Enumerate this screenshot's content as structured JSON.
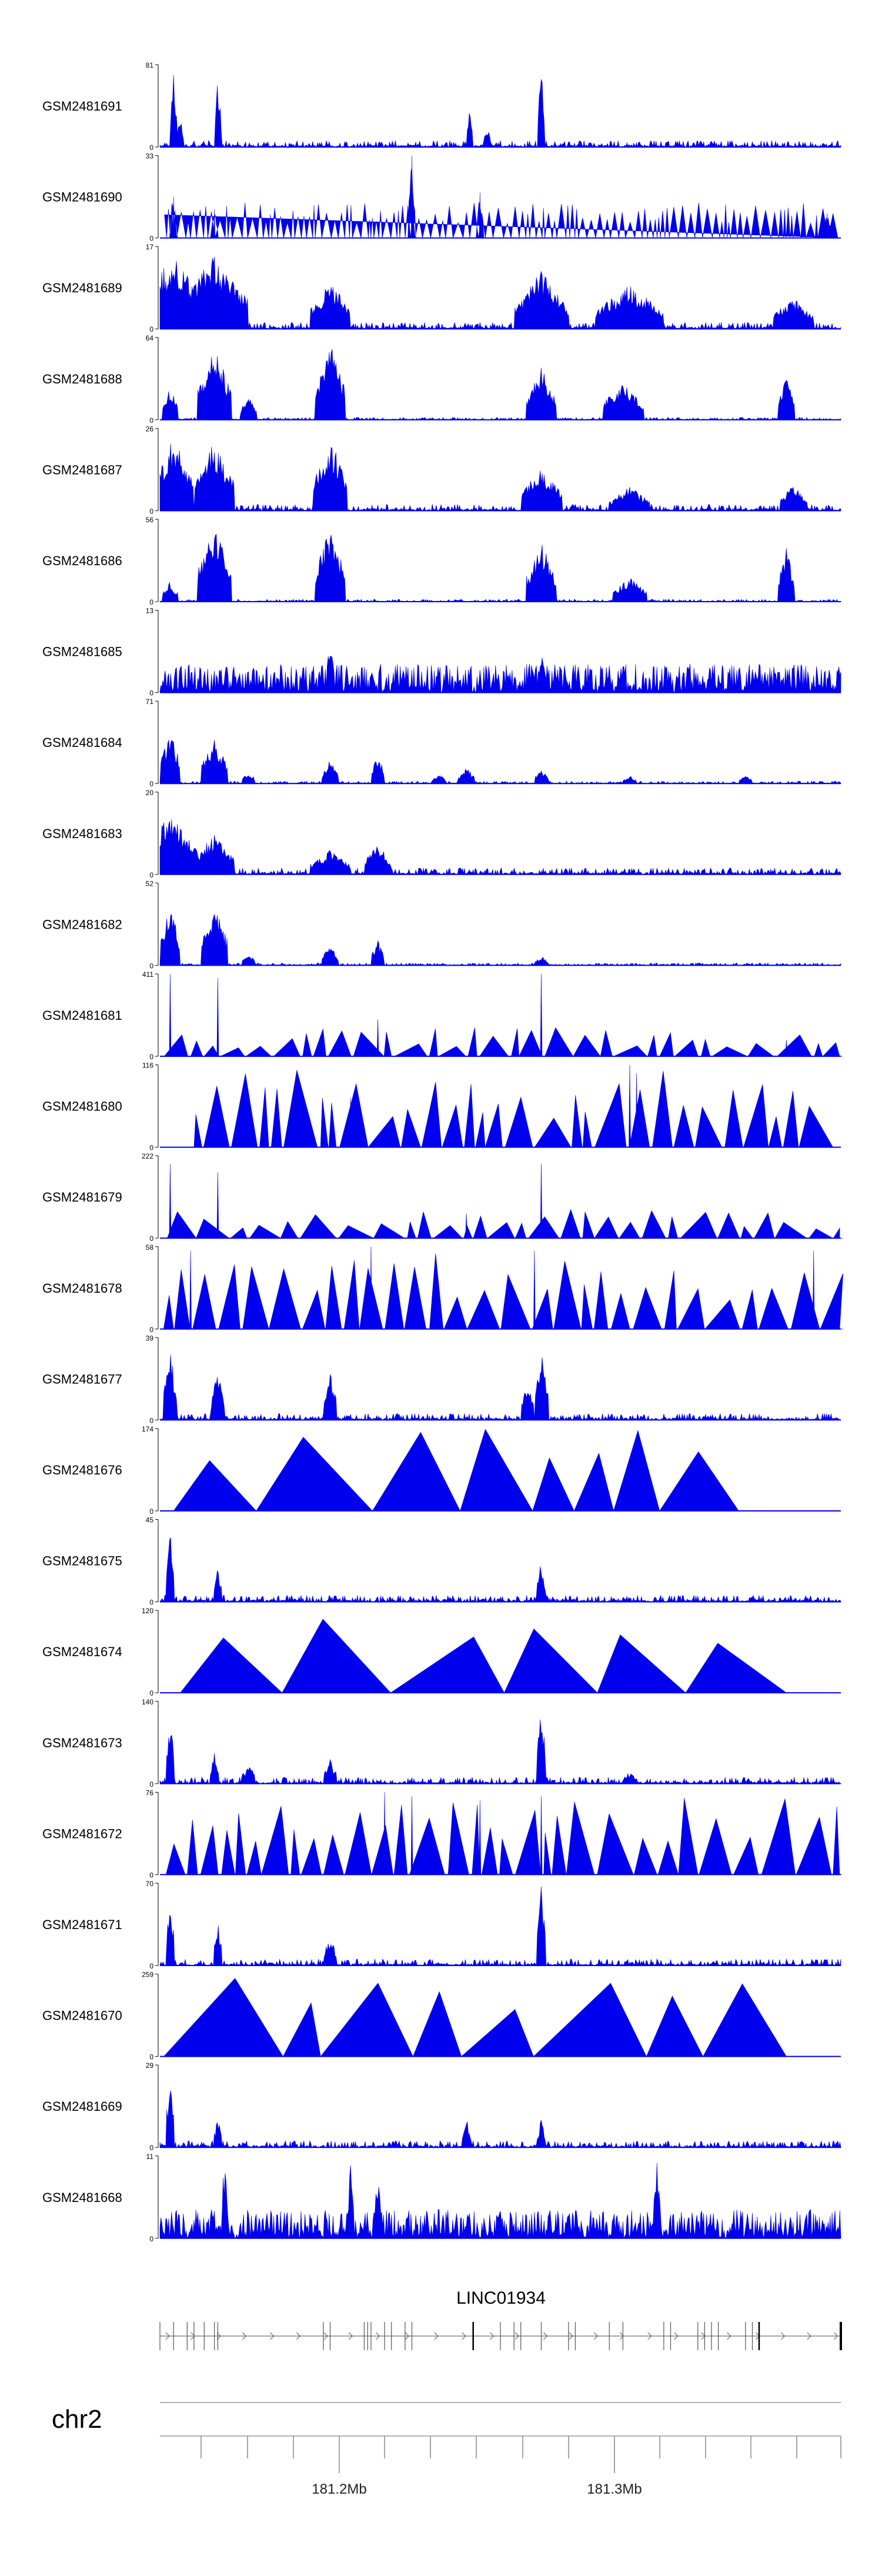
{
  "chart_data": {
    "type": "area",
    "chromosome": "chr2",
    "gene": "LINC01934",
    "x_ticks": [
      "181.2Mb",
      "181.3Mb"
    ],
    "color": "#0000ee",
    "tracks": [
      {
        "name": "GSM2481691",
        "ymax": "81",
        "ymin": "0",
        "style": "noisy",
        "peaks": [
          [
            0.02,
            0.9,
            0.5
          ],
          [
            0.03,
            0.38,
            0.5
          ],
          [
            0.085,
            0.85,
            0.5
          ],
          [
            0.455,
            0.45,
            0.5
          ],
          [
            0.48,
            0.28,
            0.5
          ],
          [
            0.56,
            1.0,
            0.5
          ]
        ]
      },
      {
        "name": "GSM2481690",
        "ymax": "33",
        "ymin": "0",
        "style": "sparse",
        "peaks": [
          [
            0.02,
            0.5,
            0.5
          ],
          [
            0.08,
            0.35,
            0.5
          ],
          [
            0.37,
            1.0,
            0.5
          ],
          [
            0.47,
            0.55,
            0.5
          ],
          [
            0.98,
            0.3,
            0.5
          ]
        ]
      },
      {
        "name": "GSM2481689",
        "ymax": "17",
        "ymin": "0",
        "style": "noisy",
        "peaks": [
          [
            0.02,
            0.95,
            4
          ],
          [
            0.08,
            0.9,
            5
          ],
          [
            0.25,
            0.6,
            3
          ],
          [
            0.56,
            0.7,
            4
          ],
          [
            0.69,
            0.55,
            5
          ],
          [
            0.93,
            0.4,
            3
          ]
        ]
      },
      {
        "name": "GSM2481688",
        "ymax": "64",
        "ymin": "0",
        "style": "broad",
        "peaks": [
          [
            0.015,
            0.4,
            1.2
          ],
          [
            0.08,
            0.9,
            2.5
          ],
          [
            0.13,
            0.3,
            1.2
          ],
          [
            0.25,
            0.95,
            2.2
          ],
          [
            0.56,
            0.65,
            2.2
          ],
          [
            0.68,
            0.5,
            3
          ],
          [
            0.92,
            0.55,
            1.2
          ]
        ]
      },
      {
        "name": "GSM2481687",
        "ymax": "26",
        "ymin": "0",
        "style": "noisy",
        "peaks": [
          [
            0.02,
            0.9,
            3
          ],
          [
            0.08,
            0.85,
            3
          ],
          [
            0.25,
            0.9,
            2.5
          ],
          [
            0.56,
            0.55,
            3
          ],
          [
            0.69,
            0.3,
            3
          ],
          [
            0.93,
            0.35,
            2
          ]
        ]
      },
      {
        "name": "GSM2481686",
        "ymax": "56",
        "ymin": "0",
        "style": "broad",
        "peaks": [
          [
            0.015,
            0.25,
            1.2
          ],
          [
            0.08,
            0.95,
            2.5
          ],
          [
            0.25,
            0.95,
            2.2
          ],
          [
            0.56,
            0.75,
            2.2
          ],
          [
            0.69,
            0.3,
            2.5
          ],
          [
            0.92,
            0.65,
            1.2
          ]
        ]
      },
      {
        "name": "GSM2481685",
        "ymax": "13",
        "ymin": "0",
        "style": "dense",
        "peaks": [
          [
            0.25,
            0.7,
            0.5
          ],
          [
            0.56,
            0.55,
            0.5
          ]
        ]
      },
      {
        "name": "GSM2481684",
        "ymax": "71",
        "ymin": "0",
        "style": "broad",
        "peaks": [
          [
            0.015,
            0.65,
            1.5
          ],
          [
            0.08,
            0.55,
            2
          ],
          [
            0.13,
            0.15,
            1
          ],
          [
            0.25,
            0.3,
            1.2
          ],
          [
            0.32,
            0.35,
            1
          ],
          [
            0.41,
            0.12,
            1
          ],
          [
            0.45,
            0.2,
            1.2
          ],
          [
            0.56,
            0.18,
            1
          ],
          [
            0.69,
            0.1,
            1
          ],
          [
            0.86,
            0.1,
            1
          ]
        ]
      },
      {
        "name": "GSM2481683",
        "ymax": "20",
        "ymin": "0",
        "style": "noisy",
        "peaks": [
          [
            0.015,
            0.75,
            4
          ],
          [
            0.08,
            0.5,
            3
          ],
          [
            0.25,
            0.3,
            3
          ],
          [
            0.32,
            0.4,
            2
          ]
        ]
      },
      {
        "name": "GSM2481682",
        "ymax": "52",
        "ymin": "0",
        "style": "broad",
        "peaks": [
          [
            0.015,
            0.75,
            1.5
          ],
          [
            0.08,
            0.75,
            2
          ],
          [
            0.13,
            0.15,
            1
          ],
          [
            0.25,
            0.25,
            1.2
          ],
          [
            0.32,
            0.3,
            1
          ],
          [
            0.56,
            0.12,
            1
          ]
        ]
      },
      {
        "name": "GSM2481681",
        "ymax": "411",
        "ymin": "0",
        "style": "triangles",
        "peaks": [
          [
            0.015,
            1.0,
            0.3
          ],
          [
            0.085,
            0.95,
            0.3
          ],
          [
            0.32,
            0.45,
            0.3
          ],
          [
            0.56,
            1.0,
            0.3
          ],
          [
            0.92,
            0.2,
            0.3
          ]
        ]
      },
      {
        "name": "GSM2481680",
        "ymax": "116",
        "ymin": "0",
        "style": "triangles",
        "peaks": [
          [
            0.28,
            0.6,
            0.3
          ],
          [
            0.69,
            1.0,
            0.3
          ],
          [
            0.7,
            0.9,
            0.3
          ]
        ]
      },
      {
        "name": "GSM2481679",
        "ymax": "222",
        "ymin": "0",
        "style": "triangles",
        "peaks": [
          [
            0.015,
            0.9,
            0.3
          ],
          [
            0.085,
            0.8,
            0.3
          ],
          [
            0.56,
            0.9,
            0.3
          ],
          [
            0.45,
            0.3,
            0.3
          ]
        ]
      },
      {
        "name": "GSM2481678",
        "ymax": "58",
        "ymin": "0",
        "style": "triangles",
        "peaks": [
          [
            0.045,
            0.95,
            0.3
          ],
          [
            0.31,
            1.0,
            0.3
          ],
          [
            0.55,
            0.95,
            0.3
          ],
          [
            0.96,
            0.95,
            0.3
          ]
        ]
      },
      {
        "name": "GSM2481677",
        "ymax": "39",
        "ymin": "0",
        "style": "noisy",
        "peaks": [
          [
            0.015,
            0.85,
            1
          ],
          [
            0.085,
            0.6,
            1
          ],
          [
            0.25,
            0.6,
            1
          ],
          [
            0.56,
            0.95,
            1
          ],
          [
            0.54,
            0.5,
            1
          ]
        ]
      },
      {
        "name": "GSM2481676",
        "ymax": "174",
        "ymin": "0",
        "style": "triangles",
        "peaks": []
      },
      {
        "name": "GSM2481675",
        "ymax": "45",
        "ymin": "0",
        "style": "noisy",
        "peaks": [
          [
            0.015,
            0.95,
            0.6
          ],
          [
            0.085,
            0.45,
            0.6
          ],
          [
            0.56,
            0.55,
            0.6
          ]
        ]
      },
      {
        "name": "GSM2481674",
        "ymax": "120",
        "ymin": "0",
        "style": "triangles",
        "peaks": []
      },
      {
        "name": "GSM2481673",
        "ymax": "140",
        "ymin": "0",
        "style": "noisy",
        "peaks": [
          [
            0.015,
            0.9,
            0.6
          ],
          [
            0.08,
            0.4,
            0.6
          ],
          [
            0.13,
            0.25,
            1
          ],
          [
            0.25,
            0.3,
            1
          ],
          [
            0.56,
            1.0,
            0.6
          ],
          [
            0.69,
            0.15,
            1
          ]
        ]
      },
      {
        "name": "GSM2481672",
        "ymax": "76",
        "ymin": "0",
        "style": "triangles",
        "peaks": [
          [
            0.33,
            1.0,
            0.3
          ],
          [
            0.37,
            0.95,
            0.3
          ],
          [
            0.47,
            0.9,
            0.3
          ],
          [
            0.56,
            0.95,
            0.3
          ]
        ]
      },
      {
        "name": "GSM2481671",
        "ymax": "70",
        "ymin": "0",
        "style": "noisy",
        "peaks": [
          [
            0.015,
            0.9,
            0.6
          ],
          [
            0.085,
            0.55,
            0.6
          ],
          [
            0.25,
            0.35,
            1
          ],
          [
            0.56,
            1.0,
            0.6
          ]
        ]
      },
      {
        "name": "GSM2481670",
        "ymax": "259",
        "ymin": "0",
        "style": "triangles",
        "peaks": []
      },
      {
        "name": "GSM2481669",
        "ymax": "29",
        "ymin": "0",
        "style": "noisy",
        "peaks": [
          [
            0.015,
            0.95,
            0.6
          ],
          [
            0.085,
            0.35,
            0.6
          ],
          [
            0.45,
            0.4,
            0.6
          ],
          [
            0.56,
            0.35,
            0.6
          ]
        ]
      },
      {
        "name": "GSM2481668",
        "ymax": "11",
        "ymin": "0",
        "style": "dense",
        "peaks": [
          [
            0.095,
            1.0,
            0.5
          ],
          [
            0.28,
            0.9,
            0.5
          ],
          [
            0.32,
            0.85,
            0.5
          ],
          [
            0.73,
            1.0,
            0.5
          ]
        ]
      }
    ]
  }
}
